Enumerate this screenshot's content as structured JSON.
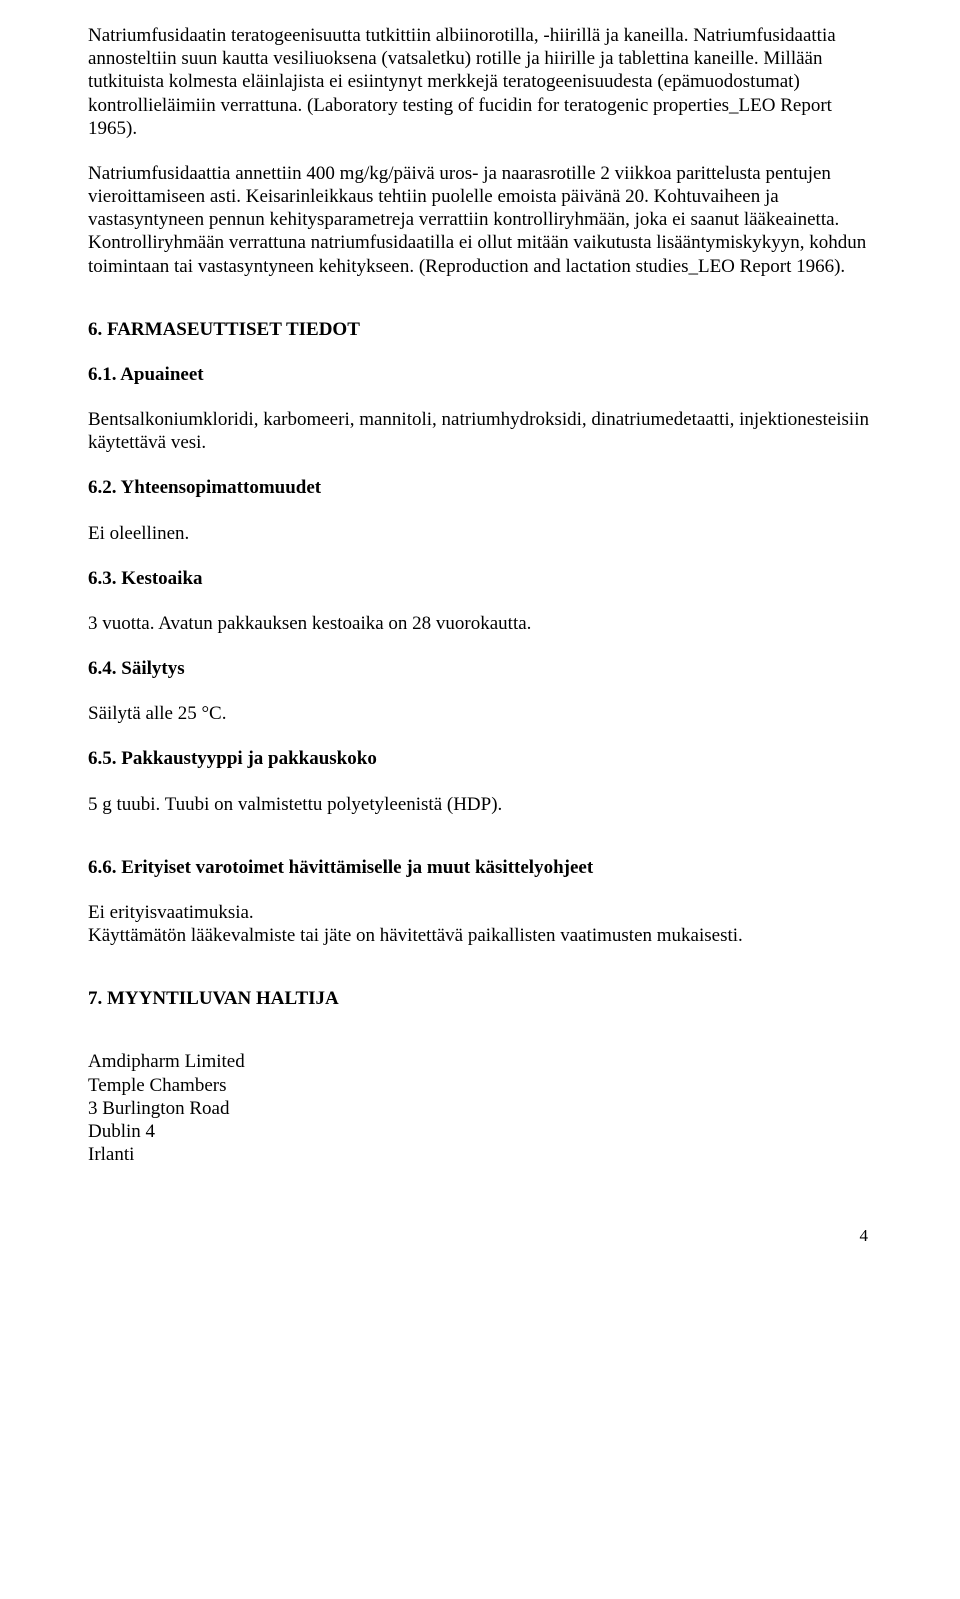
{
  "para1": "Natriumfusidaatin teratogeenisuutta tutkittiin albiinorotilla, -hiirillä ja kaneilla. Natriumfusidaattia annosteltiin suun kautta vesiliuoksena (vatsaletku) rotille ja hiirille ja tablettina kaneille. Millään tutkituista kolmesta eläinlajista ei esiintynyt merkkejä teratogeenisuudesta (epämuodostumat) kontrollieläimiin verrattuna. (Laboratory testing of fucidin for teratogenic properties_LEO Report 1965).",
  "para2": "Natriumfusidaattia annettiin 400 mg/kg/päivä uros- ja naarasrotille 2 viikkoa parittelusta pentujen vieroittamiseen asti. Keisarinleikkaus tehtiin puolelle emoista päivänä 20. Kohtuvaiheen ja vastasyntyneen pennun kehitysparametreja verrattiin kontrolliryhmään, joka ei saanut lääkeainetta. Kontrolliryhmään verrattuna natriumfusidaatilla ei ollut mitään vaikutusta lisääntymiskykyyn, kohdun toimintaan tai vastasyntyneen kehitykseen. (Reproduction and lactation studies_LEO Report 1966).",
  "sec6": {
    "title": "6. FARMASEUTTISET TIEDOT",
    "s61": {
      "title": "6.1. Apuaineet",
      "body": "Bentsalkoniumkloridi, karbomeeri, mannitoli, natriumhydroksidi, dinatriumedetaatti, injektionesteisiin käytettävä vesi."
    },
    "s62": {
      "title": "6.2. Yhteensopimattomuudet",
      "body": "Ei oleellinen."
    },
    "s63": {
      "title": "6.3. Kestoaika",
      "body": "3 vuotta. Avatun pakkauksen kestoaika on 28 vuorokautta."
    },
    "s64": {
      "title": "6.4. Säilytys",
      "body": "Säilytä alle 25 °C."
    },
    "s65": {
      "title": "6.5. Pakkaustyyppi ja pakkauskoko",
      "body": "5 g tuubi. Tuubi on valmistettu polyetyleenistä (HDP)."
    },
    "s66": {
      "title": "6.6. Erityiset varotoimet hävittämiselle ja muut käsittelyohjeet",
      "line1": "Ei erityisvaatimuksia.",
      "line2": "Käyttämätön lääkevalmiste tai jäte on hävitettävä paikallisten vaatimusten mukaisesti."
    }
  },
  "sec7": {
    "title": "7. MYYNTILUVAN HALTIJA",
    "address": {
      "l1": "Amdipharm Limited",
      "l2": "Temple Chambers",
      "l3": "3 Burlington Road",
      "l4": "Dublin 4",
      "l5": "Irlanti"
    }
  },
  "pagenum": "4"
}
